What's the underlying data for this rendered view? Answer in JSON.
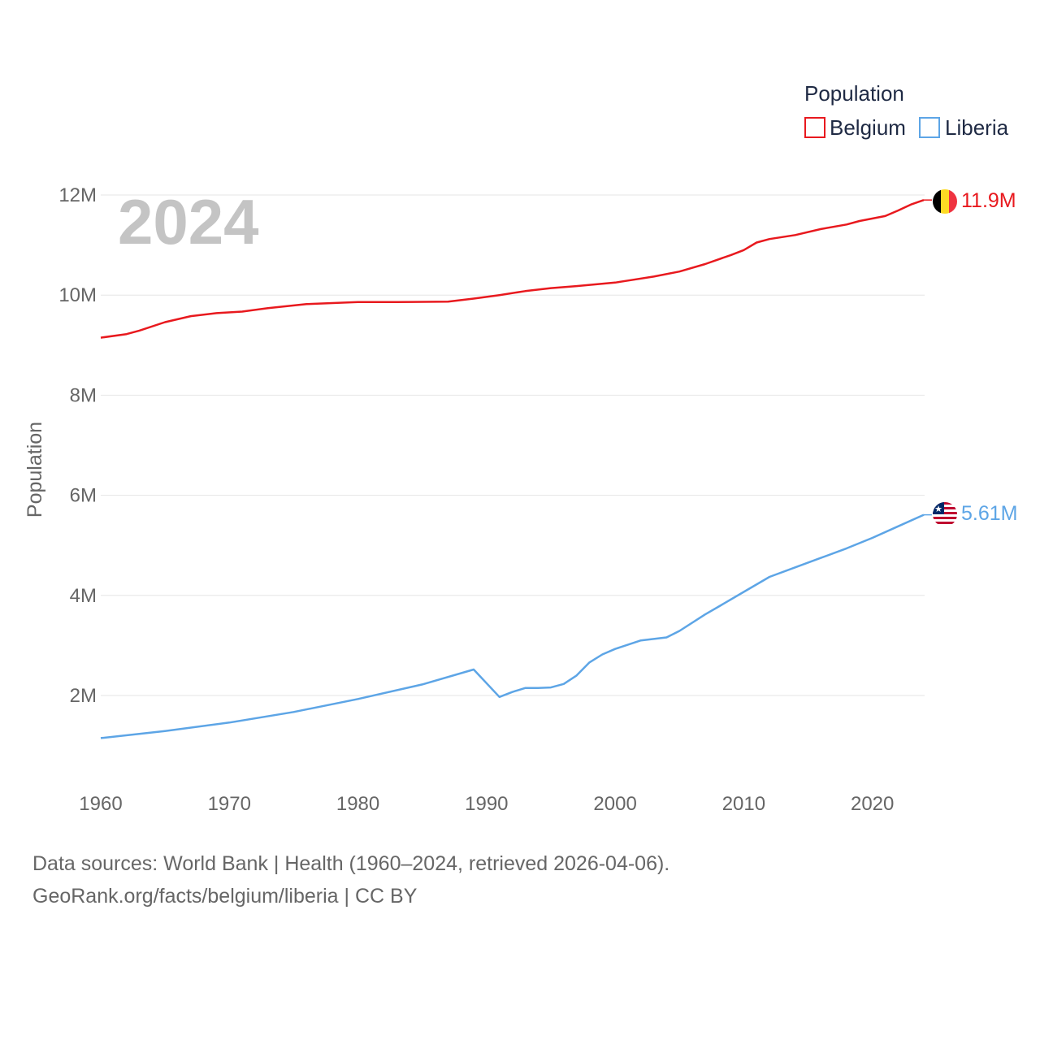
{
  "chart_data": {
    "type": "line",
    "year_watermark": "2024",
    "ylabel": "Population",
    "xlabel": "",
    "xlim": [
      1960,
      2024
    ],
    "ylim": [
      1000000,
      12000000
    ],
    "x_ticks": [
      1960,
      1970,
      1980,
      1990,
      2000,
      2010,
      2020
    ],
    "y_ticks": [
      {
        "value": 2000000,
        "label": "2M"
      },
      {
        "value": 4000000,
        "label": "4M"
      },
      {
        "value": 6000000,
        "label": "6M"
      },
      {
        "value": 8000000,
        "label": "8M"
      },
      {
        "value": 10000000,
        "label": "10M"
      },
      {
        "value": 12000000,
        "label": "12M"
      }
    ],
    "legend": {
      "title": "Population",
      "position": "top-right"
    },
    "series": [
      {
        "name": "Belgium",
        "color": "#e8191e",
        "end_label": "11.9M",
        "flag": "belgium-flag",
        "points": [
          [
            1960,
            9150000
          ],
          [
            1962,
            9220000
          ],
          [
            1963,
            9290000
          ],
          [
            1965,
            9460000
          ],
          [
            1967,
            9580000
          ],
          [
            1969,
            9640000
          ],
          [
            1971,
            9670000
          ],
          [
            1973,
            9740000
          ],
          [
            1976,
            9820000
          ],
          [
            1980,
            9860000
          ],
          [
            1983,
            9860000
          ],
          [
            1987,
            9870000
          ],
          [
            1989,
            9930000
          ],
          [
            1991,
            10000000
          ],
          [
            1993,
            10080000
          ],
          [
            1995,
            10140000
          ],
          [
            1997,
            10180000
          ],
          [
            2000,
            10250000
          ],
          [
            2001,
            10290000
          ],
          [
            2003,
            10370000
          ],
          [
            2005,
            10470000
          ],
          [
            2007,
            10620000
          ],
          [
            2009,
            10800000
          ],
          [
            2010,
            10900000
          ],
          [
            2011,
            11050000
          ],
          [
            2012,
            11120000
          ],
          [
            2014,
            11200000
          ],
          [
            2016,
            11320000
          ],
          [
            2018,
            11410000
          ],
          [
            2019,
            11480000
          ],
          [
            2021,
            11580000
          ],
          [
            2022,
            11690000
          ],
          [
            2023,
            11810000
          ],
          [
            2024,
            11900000
          ]
        ]
      },
      {
        "name": "Liberia",
        "color": "#5da5e6",
        "end_label": "5.61M",
        "flag": "liberia-flag",
        "points": [
          [
            1960,
            1150000
          ],
          [
            1965,
            1290000
          ],
          [
            1970,
            1460000
          ],
          [
            1975,
            1670000
          ],
          [
            1980,
            1930000
          ],
          [
            1985,
            2220000
          ],
          [
            1989,
            2520000
          ],
          [
            1991,
            1970000
          ],
          [
            1992,
            2070000
          ],
          [
            1993,
            2150000
          ],
          [
            1994,
            2150000
          ],
          [
            1995,
            2160000
          ],
          [
            1996,
            2230000
          ],
          [
            1997,
            2400000
          ],
          [
            1998,
            2660000
          ],
          [
            1999,
            2820000
          ],
          [
            2000,
            2930000
          ],
          [
            2002,
            3100000
          ],
          [
            2004,
            3160000
          ],
          [
            2005,
            3290000
          ],
          [
            2007,
            3620000
          ],
          [
            2008,
            3770000
          ],
          [
            2010,
            4070000
          ],
          [
            2012,
            4370000
          ],
          [
            2014,
            4560000
          ],
          [
            2016,
            4750000
          ],
          [
            2018,
            4940000
          ],
          [
            2020,
            5150000
          ],
          [
            2022,
            5380000
          ],
          [
            2024,
            5610000
          ]
        ]
      }
    ]
  },
  "footer": {
    "line1": "Data sources: World Bank | Health (1960–2024, retrieved 2026-04-06).",
    "line2": "GeoRank.org/facts/belgium/liberia | CC BY"
  }
}
